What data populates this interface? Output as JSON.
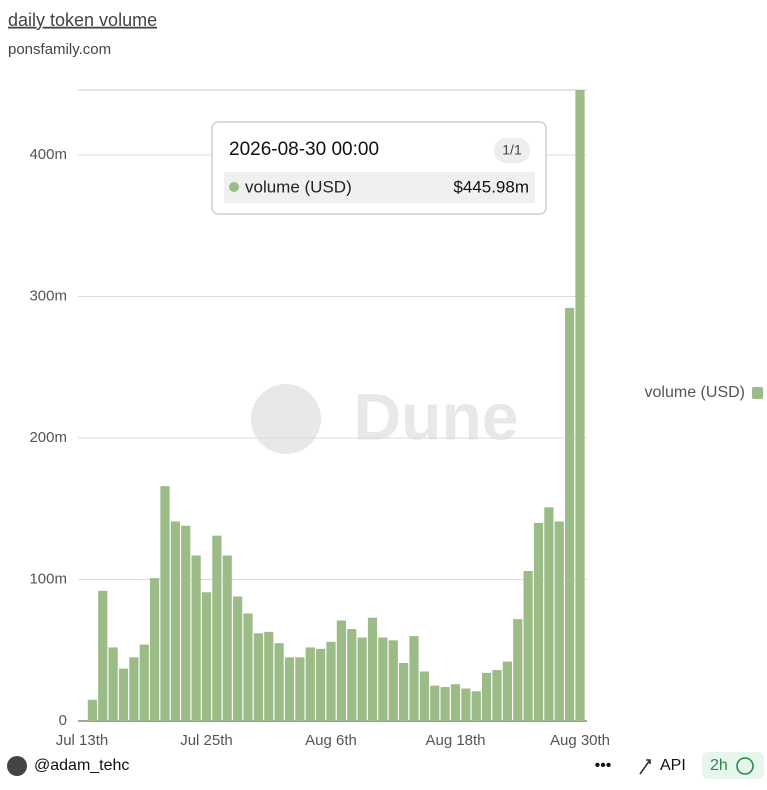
{
  "chart_data": {
    "type": "bar",
    "title": "daily token volume",
    "subtitle": "ponsfamily.com",
    "categories": [
      "Jul 13th",
      null,
      null,
      null,
      null,
      null,
      null,
      null,
      null,
      null,
      null,
      null,
      "Jul 25th",
      null,
      null,
      null,
      null,
      null,
      null,
      null,
      null,
      null,
      null,
      null,
      "Aug 6th",
      null,
      null,
      null,
      null,
      null,
      null,
      null,
      null,
      null,
      null,
      null,
      "Aug 18th",
      null,
      null,
      null,
      null,
      null,
      null,
      null,
      null,
      null,
      null,
      null,
      "Aug 30th"
    ],
    "series": [
      {
        "name": "volume (USD)",
        "color": "#9bbb87",
        "values": [
          null,
          15,
          92,
          52,
          37,
          45,
          54,
          101,
          166,
          141,
          138,
          117,
          91,
          131,
          117,
          88,
          76,
          62,
          63,
          55,
          45,
          45,
          52,
          51,
          56,
          71,
          65,
          59,
          73,
          59,
          57,
          41,
          60,
          35,
          25,
          24,
          26,
          23,
          21,
          34,
          36,
          42,
          72,
          106,
          140,
          151,
          141,
          292,
          445.98
        ]
      }
    ],
    "ylim": [
      0,
      445.98
    ],
    "yticks": [
      0,
      {
        "value": 100,
        "label": "100m"
      },
      {
        "value": 200,
        "label": "200m"
      },
      {
        "value": 300,
        "label": "300m"
      },
      {
        "value": 400,
        "label": "400m"
      }
    ],
    "grid": true,
    "legend": "right",
    "tooltip": {
      "date": "2026-08-30 00:00",
      "counter": "1/1",
      "series": "volume (USD)",
      "value_label": "$445.98m"
    },
    "watermark": "Dune"
  },
  "footer": {
    "author": "@adam_tehc",
    "api": "API",
    "refresh": "2h"
  }
}
